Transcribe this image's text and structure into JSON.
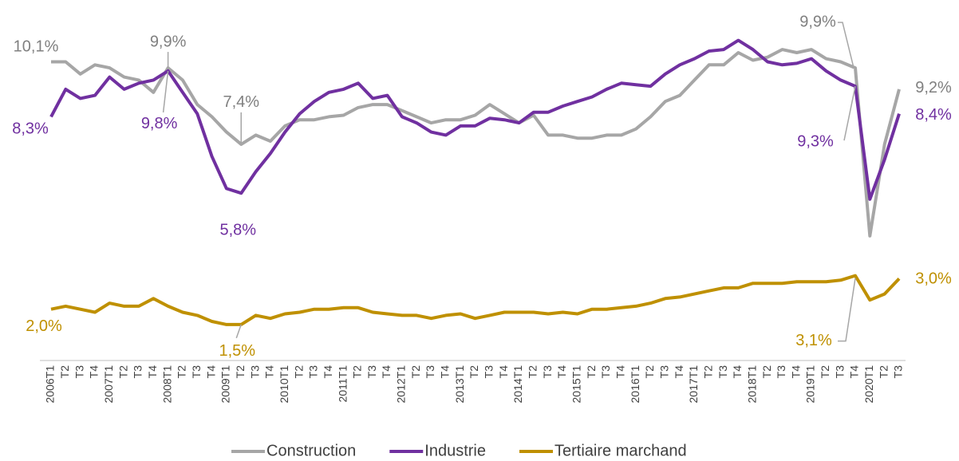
{
  "chart_data": {
    "type": "line",
    "categories": [
      "2006T1",
      "T2",
      "T3",
      "T4",
      "2007T1",
      "T2",
      "T3",
      "T4",
      "2008T1",
      "T2",
      "T3",
      "T4",
      "2009T1",
      "T2",
      "T3",
      "T4",
      "2010T1",
      "T2",
      "T3",
      "T4",
      "2011T1",
      "T2",
      "T3",
      "T4",
      "2012T1",
      "T2",
      "T3",
      "T4",
      "2013T1",
      "T2",
      "T3",
      "T4",
      "2014T1",
      "T2",
      "T3",
      "T4",
      "2015T1",
      "T2",
      "T3",
      "T4",
      "2016T1",
      "T2",
      "T3",
      "T4",
      "2017T1",
      "T2",
      "T3",
      "T4",
      "2018T1",
      "T2",
      "T3",
      "T4",
      "2019T1",
      "T2",
      "T3",
      "T4",
      "2020T1",
      "T2",
      "T3"
    ],
    "series": [
      {
        "name": "Construction",
        "color": "#a6a6a6",
        "values": [
          10.1,
          10.1,
          9.7,
          10.0,
          9.9,
          9.6,
          9.5,
          9.1,
          9.9,
          9.5,
          8.7,
          8.3,
          7.8,
          7.4,
          7.7,
          7.5,
          8.0,
          8.2,
          8.2,
          8.3,
          8.35,
          8.6,
          8.7,
          8.7,
          8.5,
          8.3,
          8.1,
          8.2,
          8.2,
          8.35,
          8.7,
          8.4,
          8.1,
          8.35,
          7.7,
          7.7,
          7.6,
          7.6,
          7.7,
          7.7,
          7.9,
          8.3,
          8.8,
          9.0,
          9.5,
          10.0,
          10.0,
          10.4,
          10.15,
          10.25,
          10.5,
          10.4,
          10.5,
          10.2,
          10.1,
          9.9,
          4.4,
          7.4,
          9.2
        ],
        "value_labels": [
          "10,1%",
          null,
          null,
          null,
          null,
          null,
          null,
          null,
          "9,9%",
          null,
          null,
          null,
          null,
          "7,4%",
          null,
          null,
          null,
          null,
          null,
          null,
          null,
          null,
          null,
          null,
          null,
          null,
          null,
          null,
          null,
          null,
          null,
          null,
          null,
          null,
          null,
          null,
          null,
          null,
          null,
          null,
          null,
          null,
          null,
          null,
          null,
          null,
          null,
          null,
          null,
          null,
          null,
          null,
          null,
          null,
          null,
          "9,9%",
          null,
          null,
          "9,2%"
        ]
      },
      {
        "name": "Industrie",
        "color": "#7030a0",
        "values": [
          8.3,
          9.2,
          8.9,
          9.0,
          9.6,
          9.2,
          9.4,
          9.5,
          9.8,
          9.1,
          8.4,
          7.0,
          5.95,
          5.8,
          6.5,
          7.1,
          7.8,
          8.4,
          8.8,
          9.1,
          9.2,
          9.4,
          8.9,
          9.0,
          8.3,
          8.1,
          7.8,
          7.7,
          8.0,
          8.0,
          8.25,
          8.2,
          8.1,
          8.45,
          8.45,
          8.65,
          8.8,
          8.95,
          9.2,
          9.4,
          9.35,
          9.3,
          9.7,
          10.0,
          10.2,
          10.45,
          10.5,
          10.8,
          10.5,
          10.1,
          10.0,
          10.05,
          10.2,
          9.8,
          9.5,
          9.3,
          5.6,
          6.9,
          8.4
        ],
        "value_labels": [
          "8,3%",
          null,
          null,
          null,
          null,
          null,
          null,
          null,
          "9,8%",
          null,
          null,
          null,
          null,
          "5,8%",
          null,
          null,
          null,
          null,
          null,
          null,
          null,
          null,
          null,
          null,
          null,
          null,
          null,
          null,
          null,
          null,
          null,
          null,
          null,
          null,
          null,
          null,
          null,
          null,
          null,
          null,
          null,
          null,
          null,
          null,
          null,
          null,
          null,
          null,
          null,
          null,
          null,
          null,
          null,
          null,
          null,
          "9,3%",
          null,
          null,
          "8,4%"
        ]
      },
      {
        "name": "Tertiaire marchand",
        "color": "#bf9000",
        "values": [
          2.0,
          2.1,
          2.0,
          1.9,
          2.2,
          2.1,
          2.1,
          2.35,
          2.1,
          1.9,
          1.8,
          1.6,
          1.5,
          1.5,
          1.8,
          1.7,
          1.85,
          1.9,
          2.0,
          2.0,
          2.05,
          2.05,
          1.9,
          1.85,
          1.8,
          1.8,
          1.7,
          1.8,
          1.85,
          1.7,
          1.8,
          1.9,
          1.9,
          1.9,
          1.85,
          1.9,
          1.85,
          2.0,
          2.0,
          2.05,
          2.1,
          2.2,
          2.35,
          2.4,
          2.5,
          2.6,
          2.7,
          2.7,
          2.85,
          2.85,
          2.85,
          2.9,
          2.9,
          2.9,
          2.95,
          3.1,
          2.3,
          2.5,
          3.0
        ],
        "value_labels": [
          "2,0%",
          null,
          null,
          null,
          null,
          null,
          null,
          null,
          null,
          null,
          null,
          null,
          null,
          "1,5%",
          null,
          null,
          null,
          null,
          null,
          null,
          null,
          null,
          null,
          null,
          null,
          null,
          null,
          null,
          null,
          null,
          null,
          null,
          null,
          null,
          null,
          null,
          null,
          null,
          null,
          null,
          null,
          null,
          null,
          null,
          null,
          null,
          null,
          null,
          null,
          null,
          null,
          null,
          null,
          null,
          null,
          "3,1%",
          null,
          null,
          "3,0%"
        ]
      }
    ],
    "ylim": [
      0.4,
      11.6
    ],
    "legend": "bottom"
  }
}
